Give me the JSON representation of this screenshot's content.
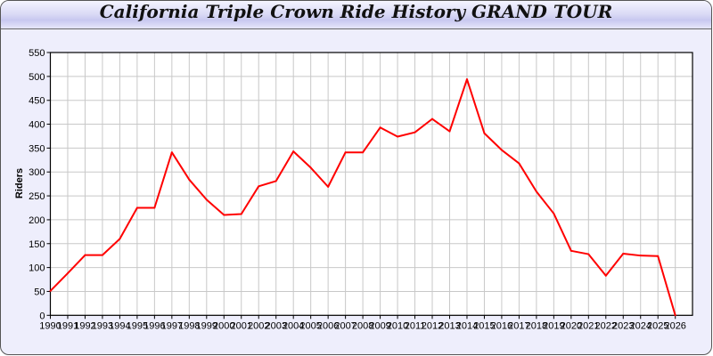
{
  "chart_data": {
    "type": "line",
    "title": "California Triple Crown Ride History GRAND TOUR",
    "xlabel": "",
    "ylabel": "Riders",
    "ylim": [
      0,
      550
    ],
    "yticks": [
      0,
      50,
      100,
      150,
      200,
      250,
      300,
      350,
      400,
      450,
      500,
      550
    ],
    "grid": true,
    "line_color": "#ff0000",
    "x": [
      1990,
      1991,
      1992,
      1993,
      1994,
      1995,
      1996,
      1997,
      1998,
      1999,
      2000,
      2001,
      2002,
      2003,
      2004,
      2005,
      2006,
      2007,
      2008,
      2009,
      2010,
      2011,
      2012,
      2013,
      2014,
      2015,
      2016,
      2017,
      2018,
      2019,
      2020,
      2021,
      2022,
      2023,
      2024,
      2025,
      2026
    ],
    "values": [
      51,
      88,
      126,
      126,
      160,
      225,
      225,
      341,
      284,
      242,
      210,
      212,
      270,
      281,
      343,
      309,
      269,
      341,
      341,
      393,
      374,
      383,
      411,
      385,
      494,
      381,
      346,
      318,
      259,
      213,
      135,
      128,
      83,
      129,
      125,
      124,
      0
    ]
  }
}
